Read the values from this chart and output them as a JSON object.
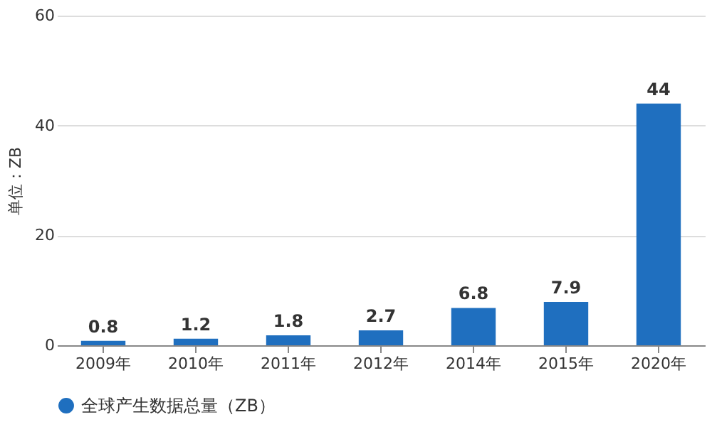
{
  "chart_data": {
    "type": "bar",
    "ylabel": "单位：ZB",
    "categories": [
      "2009年",
      "2010年",
      "2011年",
      "2012年",
      "2014年",
      "2015年",
      "2020年"
    ],
    "series": [
      {
        "name": "全球产生数据总量（ZB）",
        "color": "#1f6fbf",
        "values": [
          0.8,
          1.2,
          1.8,
          2.7,
          6.8,
          7.9,
          44
        ]
      }
    ],
    "ylim": [
      0,
      60
    ],
    "yticks": [
      0,
      20,
      40,
      60
    ],
    "grid": "y",
    "legend": "bottom",
    "data_labels": true
  }
}
